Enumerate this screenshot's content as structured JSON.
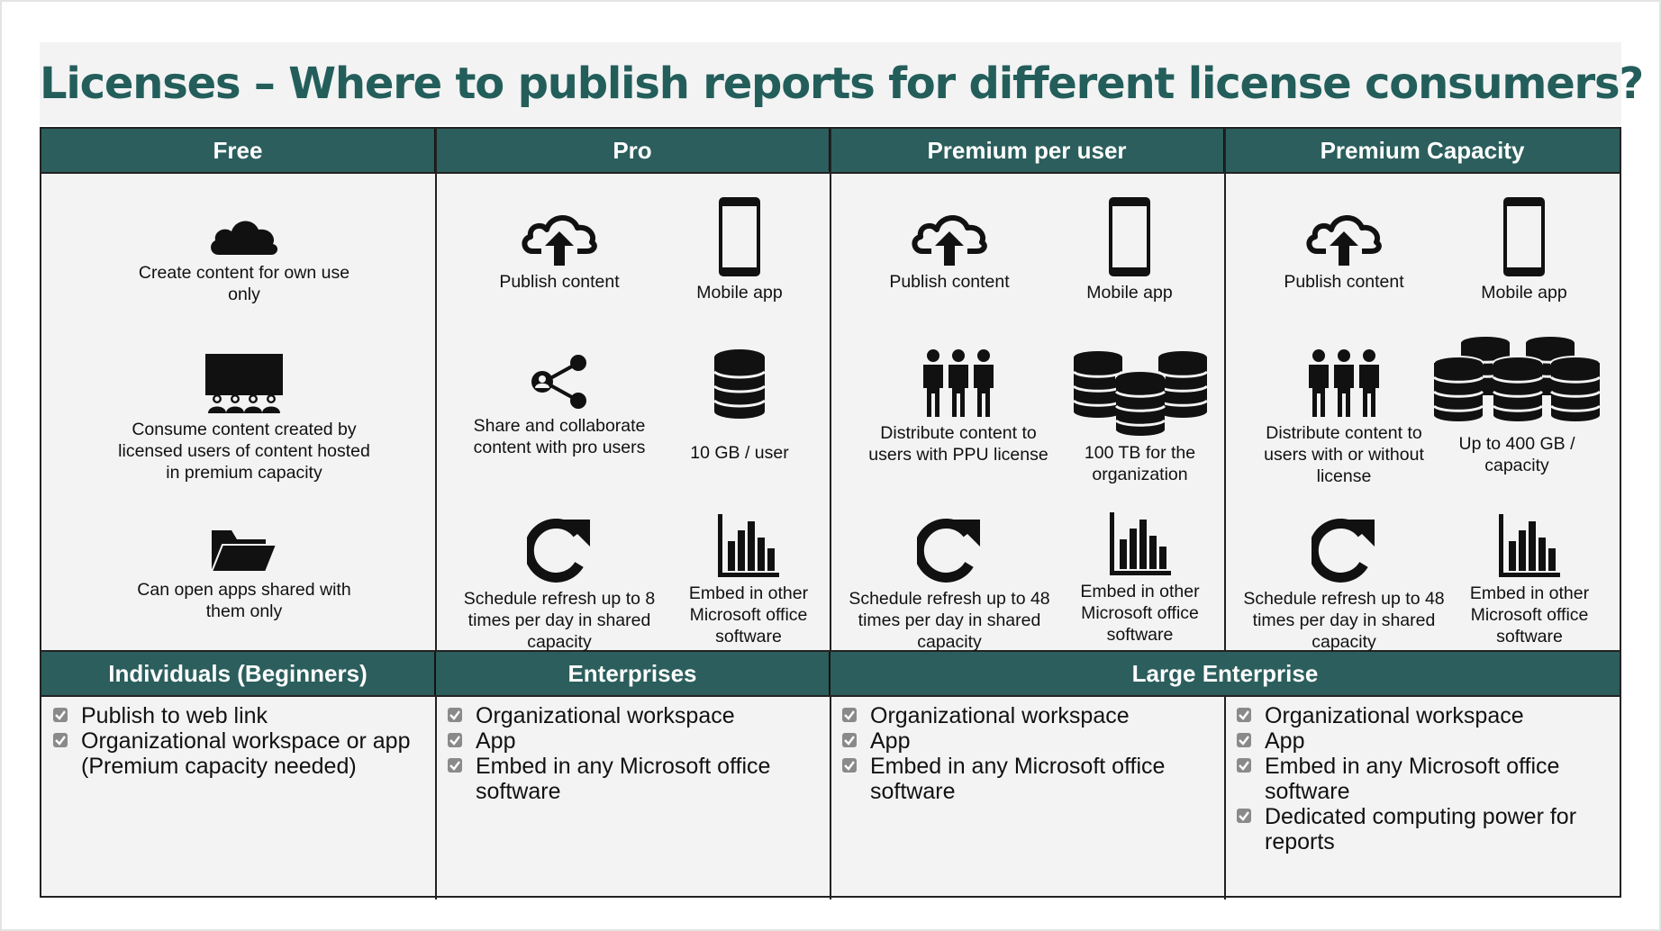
{
  "title": "Licenses – Where to publish reports for different license consumers?",
  "colors": {
    "header_bg": "#2b5e5c",
    "title_color": "#235e5b",
    "panel_bg": "#f3f3f3"
  },
  "columns": [
    {
      "name": "Free"
    },
    {
      "name": "Pro"
    },
    {
      "name": "Premium per user"
    },
    {
      "name": "Premium Capacity"
    }
  ],
  "features": {
    "free": [
      {
        "icon": "cloud-icon",
        "label": "Create content for own use only"
      },
      {
        "icon": "audience-icon",
        "label": "Consume content created by licensed users of content hosted in premium capacity"
      },
      {
        "icon": "folder-icon",
        "label": "Can open apps shared with them only"
      }
    ],
    "pro": [
      {
        "icon": "cloud-upload-icon",
        "label": "Publish content"
      },
      {
        "icon": "mobile-icon",
        "label": "Mobile app"
      },
      {
        "icon": "share-icon",
        "label": "Share and collaborate content with pro users"
      },
      {
        "icon": "database-icon",
        "label": "10 GB / user"
      },
      {
        "icon": "refresh-icon",
        "label": "Schedule refresh up to 8 times per day in shared capacity"
      },
      {
        "icon": "bar-chart-icon",
        "label": "Embed in other Microsoft office software"
      }
    ],
    "ppu": [
      {
        "icon": "cloud-upload-icon",
        "label": "Publish content"
      },
      {
        "icon": "mobile-icon",
        "label": "Mobile app"
      },
      {
        "icon": "people-icon",
        "label": "Distribute content to users with PPU license"
      },
      {
        "icon": "database-cluster-icon",
        "label": "100 TB for the organization"
      },
      {
        "icon": "refresh-icon",
        "label": "Schedule refresh up to 48 times per day in shared capacity"
      },
      {
        "icon": "bar-chart-icon",
        "label": "Embed in other Microsoft office software"
      }
    ],
    "capacity": [
      {
        "icon": "cloud-upload-icon",
        "label": "Publish content"
      },
      {
        "icon": "mobile-icon",
        "label": "Mobile app"
      },
      {
        "icon": "people-icon",
        "label": "Distribute content to users with or without license"
      },
      {
        "icon": "database-large-cluster-icon",
        "label": "Up to 400 GB / capacity"
      },
      {
        "icon": "refresh-icon",
        "label": "Schedule refresh up to 48 times per day in shared capacity"
      },
      {
        "icon": "bar-chart-icon",
        "label": "Embed in other Microsoft office software"
      }
    ]
  },
  "consumers": [
    {
      "name": "Individuals (Beginners)"
    },
    {
      "name": "Enterprises"
    },
    {
      "name": "Large Enterprise"
    }
  ],
  "lists": {
    "individuals": [
      "Publish to web link",
      "Organizational workspace or app (Premium capacity needed)"
    ],
    "enterprises": [
      "Organizational workspace",
      "App",
      "Embed in any Microsoft office software"
    ],
    "large_ppu": [
      "Organizational workspace",
      "App",
      "Embed in any Microsoft office software"
    ],
    "large_capacity": [
      "Organizational workspace",
      "App",
      "Embed in any Microsoft office software",
      "Dedicated computing power for reports"
    ]
  }
}
